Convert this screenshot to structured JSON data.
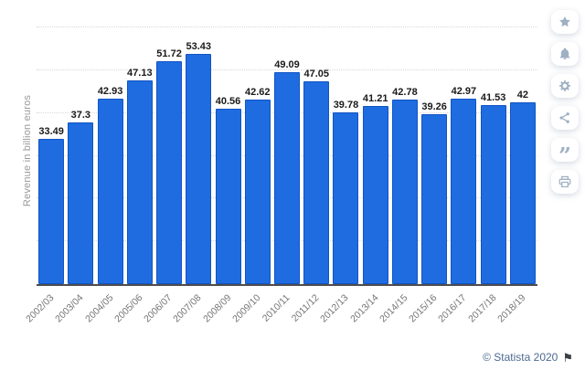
{
  "chart_data": {
    "type": "bar",
    "title": "",
    "ylabel": "Revenue in billion euros",
    "xlabel": "",
    "categories": [
      "2002/03",
      "2003/04",
      "2004/05",
      "2005/06",
      "2006/07",
      "2007/08",
      "2008/09",
      "2009/10",
      "2010/11",
      "2011/12",
      "2012/13",
      "2013/14",
      "2014/15",
      "2015/16",
      "2016/17",
      "2017/18",
      "2018/19"
    ],
    "values": [
      33.49,
      37.3,
      42.93,
      47.13,
      51.72,
      53.43,
      40.56,
      42.62,
      49.09,
      47.05,
      39.78,
      41.21,
      42.78,
      39.26,
      42.97,
      41.53,
      42
    ],
    "ylim": [
      0,
      60
    ],
    "gridline_step": 10,
    "grid": true,
    "legend": false,
    "bar_color": "#1e6ce0",
    "bar_border_color": "#1254c4",
    "value_label_color": "#1a1a1a",
    "grid_color": "#d9d9d9",
    "axis_color": "#4d4d4d",
    "tick_label_color": "#757575"
  },
  "toolbar": {
    "buttons": [
      {
        "name": "favorite",
        "icon": "star"
      },
      {
        "name": "notifications",
        "icon": "bell"
      },
      {
        "name": "settings",
        "icon": "gear"
      },
      {
        "name": "share",
        "icon": "share"
      },
      {
        "name": "cite",
        "icon": "quote"
      },
      {
        "name": "print",
        "icon": "printer"
      }
    ]
  },
  "credit": {
    "text": "© Statista 2020",
    "flag": "⚑",
    "color": "#4c6a92"
  }
}
